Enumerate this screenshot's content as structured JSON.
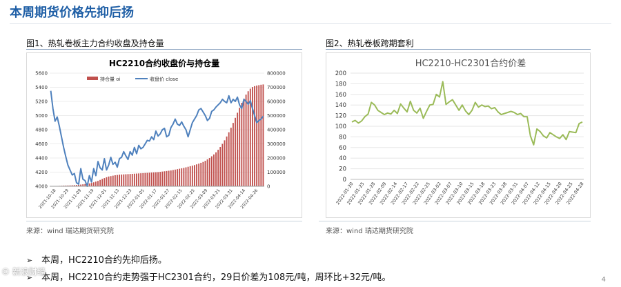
{
  "page": {
    "title": "本周期货价格先抑后扬",
    "page_number": "4",
    "watermark": "© 新浪财经",
    "bullets": [
      "本周，HC2210合约先抑后扬。",
      "本周，HC2210合约走势强于HC2301合约，29日价差为108元/吨，周环比+32元/吨。"
    ]
  },
  "figure1": {
    "caption": "图1、热轧卷板主力合约收盘及持仓量",
    "source": "来源：wind   瑞达期货研究院"
  },
  "figure2": {
    "caption": "图2、热轧卷板跨期套利",
    "source": "来源：wind   瑞达期货研究院"
  },
  "colors": {
    "title_blue": "#1f5fa6",
    "bar_red": "#c0504d",
    "line_blue": "#4f81bd",
    "line_green": "#9bbb59"
  },
  "chart_data": [
    {
      "type": "bar+line",
      "title": "HC2210合约收盘价与持仓量",
      "legend": [
        "持仓量 oi",
        "收盘价 close"
      ],
      "legend_position": "top",
      "x_tick_labels": [
        "2021-10-18",
        "2021-10-29",
        "2021-11-09",
        "2021-11-19",
        "2021-12-01",
        "2021-12-13",
        "2021-12-23",
        "2022-01-05",
        "2022-01-17",
        "2022-01-27",
        "2022-02-15",
        "2022-02-25",
        "2022-03-09",
        "2022-03-21",
        "2022-03-31",
        "2022-04-14",
        "2022-04-26"
      ],
      "y_left": {
        "ticks": [
          "4000",
          "4200",
          "4400",
          "4600",
          "4800",
          "5000",
          "5200",
          "5400",
          "5600"
        ],
        "range": [
          4000,
          5600
        ]
      },
      "y_right": {
        "ticks": [
          "0",
          "100000",
          "200000",
          "300000",
          "400000",
          "500000",
          "600000",
          "700000",
          "800000"
        ],
        "range": [
          0,
          800000
        ]
      },
      "series": [
        {
          "name": "持仓量 oi",
          "axis": "right",
          "kind": "bar",
          "values": [
            1000,
            1500,
            2000,
            2500,
            3000,
            3500,
            4500,
            5000,
            5500,
            6000,
            7000,
            8000,
            9000,
            10000,
            12000,
            14000,
            16000,
            18000,
            20000,
            24000,
            28000,
            33000,
            38000,
            45000,
            52000,
            58000,
            64000,
            69000,
            72000,
            75000,
            78000,
            80000,
            82000,
            83000,
            84000,
            85000,
            86000,
            87000,
            88000,
            89000,
            90000,
            91000,
            92000,
            93000,
            94000,
            95000,
            96000,
            97000,
            98000,
            99000,
            100000,
            102000,
            104000,
            106000,
            108000,
            110000,
            112000,
            115000,
            118000,
            121000,
            124000,
            127000,
            130000,
            134000,
            138000,
            142000,
            146000,
            150000,
            155000,
            160000,
            166000,
            172000,
            180000,
            190000,
            200000,
            212000,
            225000,
            240000,
            258000,
            278000,
            300000,
            325000,
            352000,
            382000,
            414000,
            448000,
            484000,
            520000,
            555000,
            590000,
            620000,
            648000,
            672000,
            690000,
            702000,
            708000,
            712000,
            715000,
            718000,
            720000
          ]
        },
        {
          "name": "收盘价 close",
          "axis": "left",
          "kind": "line",
          "values": [
            5350,
            5100,
            4920,
            4980,
            4850,
            4700,
            4550,
            4420,
            4300,
            4230,
            4160,
            4180,
            4050,
            4030,
            4250,
            4100,
            4080,
            4000,
            4150,
            4060,
            4250,
            4150,
            4350,
            4260,
            4230,
            4390,
            4230,
            4300,
            4410,
            4310,
            4340,
            4270,
            4390,
            4410,
            4490,
            4430,
            4380,
            4490,
            4440,
            4550,
            4460,
            4580,
            4530,
            4550,
            4600,
            4650,
            4640,
            4700,
            4660,
            4780,
            4710,
            4740,
            4800,
            4820,
            4700,
            4720,
            4830,
            4880,
            4950,
            4880,
            4860,
            4910,
            4850,
            4800,
            4700,
            4800,
            4900,
            4950,
            5000,
            5080,
            5100,
            5050,
            5000,
            4930,
            4960,
            5060,
            5080,
            5120,
            5150,
            5180,
            5230,
            5200,
            5180,
            5280,
            5180,
            5230,
            5200,
            5260,
            5150,
            5100,
            5230,
            5200,
            5160,
            5210,
            5100,
            5000,
            4900,
            4930,
            4950,
            4990
          ]
        }
      ]
    },
    {
      "type": "line",
      "title": "HC2210-HC2301合约价差",
      "x_tick_labels": [
        "2022-01-20",
        "2022-01-25",
        "2022-01-28",
        "2022-02-09",
        "2022-02-14",
        "2022-02-17",
        "2022-02-22",
        "2022-02-25",
        "2022-03-02",
        "2022-03-07",
        "2022-03-10",
        "2022-03-15",
        "2022-03-18",
        "2022-03-23",
        "2022-03-28",
        "2022-03-31",
        "2022-04-07",
        "2022-04-12",
        "2022-04-15",
        "2022-04-20",
        "2022-04-25",
        "2022-04-28"
      ],
      "y": {
        "ticks": [
          "0",
          "20",
          "40",
          "60",
          "80",
          "100",
          "120",
          "140",
          "160",
          "180",
          "200"
        ],
        "range": [
          0,
          200
        ]
      },
      "series": [
        {
          "name": "",
          "values": [
            108,
            111,
            106,
            110,
            118,
            123,
            145,
            140,
            130,
            126,
            122,
            125,
            123,
            130,
            124,
            142,
            134,
            127,
            147,
            130,
            125,
            134,
            115,
            128,
            140,
            141,
            160,
            155,
            184,
            141,
            146,
            150,
            140,
            130,
            140,
            129,
            122,
            130,
            145,
            136,
            140,
            137,
            138,
            133,
            135,
            127,
            122,
            124,
            126,
            128,
            126,
            122,
            124,
            118,
            118,
            82,
            65,
            95,
            90,
            82,
            78,
            88,
            84,
            80,
            77,
            84,
            75,
            90,
            89,
            88,
            105,
            108
          ]
        }
      ]
    }
  ]
}
